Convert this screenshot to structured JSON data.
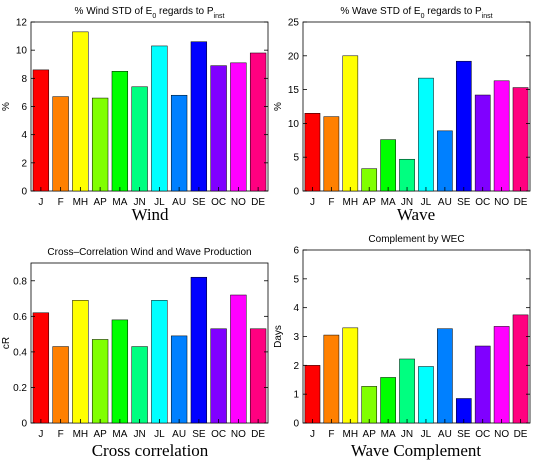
{
  "chart_data": [
    {
      "type": "bar",
      "title_parts": [
        "% Wind STD of E",
        "0",
        " regards to P",
        "inst"
      ],
      "caption": "Wind",
      "ylabel": "%",
      "categories": [
        "J",
        "F",
        "MH",
        "AP",
        "MA",
        "JN",
        "JL",
        "AU",
        "SE",
        "OC",
        "NO",
        "DE"
      ],
      "values": [
        8.6,
        6.7,
        11.3,
        6.6,
        8.5,
        7.4,
        10.3,
        6.8,
        10.6,
        8.9,
        9.1,
        9.8
      ],
      "ylim": [
        0,
        12
      ],
      "yticks": [
        0,
        2,
        4,
        6,
        8,
        10,
        12
      ],
      "grid": false
    },
    {
      "type": "bar",
      "title_parts": [
        "% Wave STD of E",
        "0",
        " regards to P",
        "inst"
      ],
      "caption": "Wave",
      "ylabel": "%",
      "categories": [
        "J",
        "F",
        "MH",
        "AP",
        "MA",
        "JN",
        "JL",
        "AU",
        "SE",
        "OC",
        "NO",
        "DE"
      ],
      "values": [
        11.5,
        11.0,
        20.0,
        3.3,
        7.6,
        4.7,
        16.7,
        8.9,
        19.2,
        14.2,
        16.3,
        15.3
      ],
      "ylim": [
        0,
        25
      ],
      "yticks": [
        0,
        5,
        10,
        15,
        20,
        25
      ],
      "grid": false
    },
    {
      "type": "bar",
      "title_parts": [
        "Cross–Correlation Wind and Wave Production"
      ],
      "caption": "Cross correlation",
      "ylabel": "cR",
      "categories": [
        "J",
        "F",
        "MH",
        "AP",
        "MA",
        "JN",
        "JL",
        "AU",
        "SE",
        "OC",
        "NO",
        "DE"
      ],
      "values": [
        0.62,
        0.43,
        0.69,
        0.47,
        0.58,
        0.43,
        0.69,
        0.49,
        0.82,
        0.53,
        0.72,
        0.53
      ],
      "ylim": [
        0,
        0.9
      ],
      "yticks": [
        0,
        0.2,
        0.4,
        0.6,
        0.8
      ],
      "grid": false
    },
    {
      "type": "bar",
      "title_parts": [
        "Complement by WEC"
      ],
      "caption": "Wave Complement",
      "ylabel": "Days",
      "categories": [
        "J",
        "F",
        "MH",
        "AP",
        "MA",
        "JN",
        "JL",
        "AU",
        "SE",
        "OC",
        "NO",
        "DE"
      ],
      "values": [
        2.0,
        3.05,
        3.3,
        1.27,
        1.58,
        2.22,
        1.96,
        3.27,
        0.85,
        2.67,
        3.35,
        3.75
      ],
      "ylim": [
        0,
        6
      ],
      "yticks": [
        0,
        1,
        2,
        3,
        4,
        5,
        6
      ],
      "grid": false
    }
  ],
  "colors": [
    "#ff0000",
    "#ff8000",
    "#ffff00",
    "#80ff00",
    "#00ff00",
    "#00ff80",
    "#00ffff",
    "#0080ff",
    "#0000ff",
    "#8000ff",
    "#ff00ff",
    "#ff0080"
  ],
  "edge_color": "#000000"
}
